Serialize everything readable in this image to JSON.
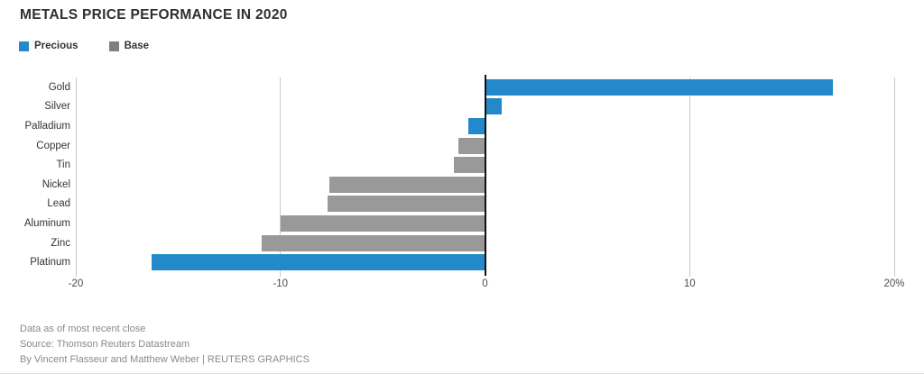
{
  "title": "METALS PRICE PEFORMANCE IN 2020",
  "legend": [
    {
      "label": "Precious",
      "color": "#2389ca",
      "icon": "legend-swatch-precious"
    },
    {
      "label": "Base",
      "color": "#7f7f7f",
      "icon": "legend-swatch-base"
    }
  ],
  "colors": {
    "precious_bar": "#2389ca",
    "base_bar": "#999999",
    "gridline": "#c9c9c9",
    "zero_line": "#111111",
    "title_text": "#2f2f2f",
    "footer_text": "#8a8a8a"
  },
  "chart_data": {
    "type": "bar",
    "orientation": "horizontal",
    "title": "METALS PRICE PEFORMANCE IN 2020",
    "unit": "%",
    "categories": [
      "Gold",
      "Silver",
      "Palladium",
      "Copper",
      "Tin",
      "Nickel",
      "Lead",
      "Aluminum",
      "Zinc",
      "Platinum"
    ],
    "values": [
      17.0,
      0.8,
      -0.8,
      -1.3,
      -1.5,
      -7.6,
      -7.7,
      -10.0,
      -10.9,
      -16.3
    ],
    "groups": [
      "Precious",
      "Precious",
      "Precious",
      "Base",
      "Base",
      "Base",
      "Base",
      "Base",
      "Base",
      "Precious"
    ],
    "xlim": [
      -20,
      20
    ],
    "xticks": [
      {
        "value": -20,
        "label": "-20"
      },
      {
        "value": -10,
        "label": "-10"
      },
      {
        "value": 0,
        "label": "0"
      },
      {
        "value": 10,
        "label": "10"
      },
      {
        "value": 20,
        "label": "20%"
      }
    ],
    "grid": true,
    "legend_position": "top-left"
  },
  "footer": {
    "line1": "Data as of most recent close",
    "line2": "Source: Thomson Reuters Datastream",
    "line3": "By Vincent Flasseur and Matthew Weber | REUTERS GRAPHICS"
  }
}
